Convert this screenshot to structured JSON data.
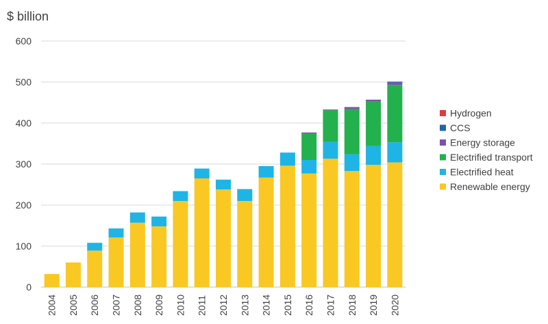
{
  "chart_data": {
    "type": "bar",
    "stacked": true,
    "title": "",
    "y_unit_label": "$ billion",
    "xlabel": "",
    "ylabel": "$ billion",
    "ylim": [
      0,
      600
    ],
    "yticks": [
      0,
      100,
      200,
      300,
      400,
      500,
      600
    ],
    "grid": true,
    "legend_position": "right",
    "categories": [
      "2004",
      "2005",
      "2006",
      "2007",
      "2008",
      "2009",
      "2010",
      "2011",
      "2012",
      "2013",
      "2014",
      "2015",
      "2016",
      "2017",
      "2018",
      "2019",
      "2020"
    ],
    "series": [
      {
        "name": "Renewable energy",
        "color": "#f9c823",
        "values": [
          32,
          60,
          89,
          121,
          157,
          148,
          210,
          265,
          238,
          210,
          267,
          296,
          277,
          313,
          283,
          298,
          304
        ]
      },
      {
        "name": "Electrified heat",
        "color": "#1fb4e6",
        "values": [
          0,
          0,
          19,
          22,
          25,
          24,
          24,
          24,
          24,
          29,
          28,
          32,
          33,
          41,
          41,
          46,
          49
        ]
      },
      {
        "name": "Electrified transport",
        "color": "#22b14c",
        "values": [
          0,
          0,
          0,
          0,
          0,
          0,
          0,
          0,
          0,
          0,
          0,
          0,
          65,
          77,
          110,
          108,
          140
        ]
      },
      {
        "name": "Energy storage",
        "color": "#7a55a5",
        "values": [
          0,
          0,
          0,
          0,
          0,
          0,
          0,
          0,
          0,
          0,
          0,
          0,
          2,
          2,
          5,
          5,
          6
        ]
      },
      {
        "name": "CCS",
        "color": "#1f63b5",
        "values": [
          0,
          0,
          0,
          0,
          0,
          0,
          0,
          0,
          0,
          0,
          0,
          0,
          0,
          0,
          0,
          0,
          2
        ]
      },
      {
        "name": "Hydrogen",
        "color": "#e23a3a",
        "values": [
          0,
          0,
          0,
          0,
          0,
          0,
          0,
          0,
          0,
          0,
          0,
          0,
          0,
          0,
          0,
          0,
          0
        ]
      }
    ],
    "legend_order": [
      "Hydrogen",
      "CCS",
      "Energy storage",
      "Electrified transport",
      "Electrified heat",
      "Renewable energy"
    ]
  }
}
